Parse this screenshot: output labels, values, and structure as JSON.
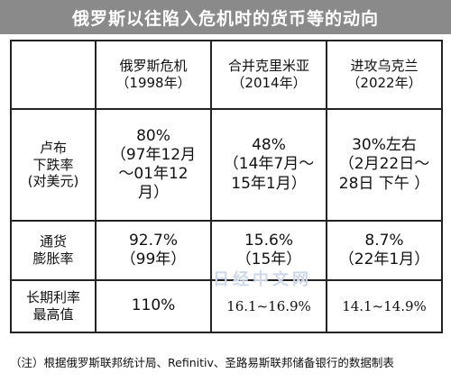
{
  "title": "俄罗斯以往陷入危机时的货币等的动向",
  "columns": [
    {
      "name": "俄罗斯危机",
      "year": "（1998年）"
    },
    {
      "name": "合并克里米亚",
      "year": "（2014年）"
    },
    {
      "name": "进攻乌克兰",
      "year": "（2022年）"
    }
  ],
  "rows": [
    {
      "label": "卢布\n下跌率\n(对美元)",
      "values": [
        "80%\n（97年12月\n～01年12\n月）",
        "48%\n（14年7月～\n15年1月）",
        "30%左右\n（2月22日～\n28日 下午 ）"
      ]
    },
    {
      "label": "通货\n膨胀率",
      "values": [
        "92.7%\n（99年）",
        "15.6%\n（15年）",
        "8.7%\n（22年1月）"
      ]
    },
    {
      "label": "长期利率\n最高值",
      "values": [
        "110%",
        "16.1~16.9%",
        "14.1~14.9%"
      ]
    }
  ],
  "watermark": "日经中文网",
  "note": "（注）根据俄罗斯联邦统计局、Refinitiv、圣路易斯联邦储备银行的数据制表"
}
